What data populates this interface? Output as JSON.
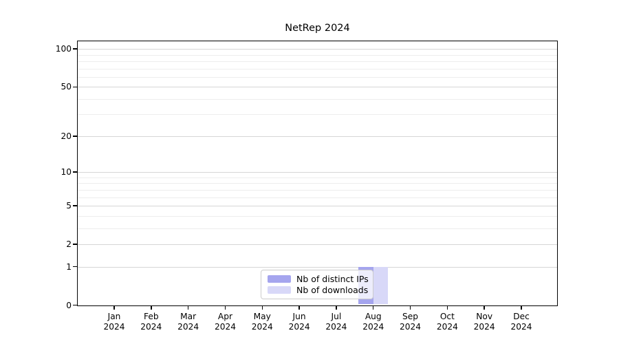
{
  "chart_data": {
    "type": "bar",
    "title": "NetRep 2024",
    "categories": [
      "Jan 2024",
      "Feb 2024",
      "Mar 2024",
      "Apr 2024",
      "May 2024",
      "Jun 2024",
      "Jul 2024",
      "Aug 2024",
      "Sep 2024",
      "Oct 2024",
      "Nov 2024",
      "Dec 2024"
    ],
    "series": [
      {
        "name": "Nb of distinct IPs",
        "color": "#a5a5ee",
        "values": [
          0,
          0,
          0,
          0,
          0,
          0,
          0,
          1,
          0,
          0,
          0,
          0
        ]
      },
      {
        "name": "Nb of downloads",
        "color": "#d8d8f8",
        "values": [
          0,
          0,
          0,
          0,
          0,
          0,
          0,
          1,
          0,
          0,
          0,
          0
        ]
      }
    ],
    "xlabel": "",
    "ylabel": "",
    "y_axis": {
      "scale": "symlog-log1p",
      "tick_values": [
        100,
        50,
        20,
        10,
        5,
        2,
        1,
        0
      ],
      "tick_labels": [
        "100",
        "50",
        "20",
        "10",
        "5",
        "2",
        "1",
        "0"
      ],
      "major_gridlines": [
        1,
        2,
        5,
        10,
        20,
        50,
        100
      ],
      "minor_gridlines": [
        3,
        4,
        6,
        7,
        8,
        9,
        30,
        40,
        60,
        70,
        80,
        90
      ],
      "ylim": [
        0,
        115
      ]
    },
    "legend_position": "lower center",
    "grid": true,
    "colors": {
      "major_grid": "#d6d6d6",
      "minor_grid": "#ededed",
      "axis": "#000000",
      "legend_border": "#cccccc"
    }
  }
}
